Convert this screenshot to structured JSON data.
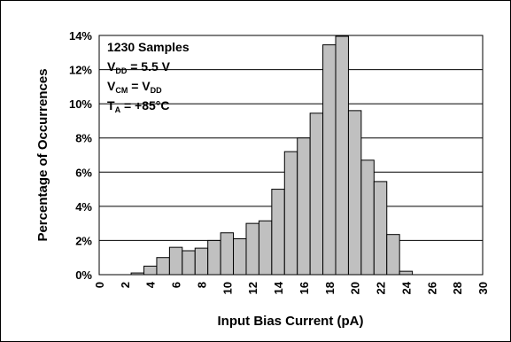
{
  "chart_data": {
    "type": "bar",
    "xlabel": "Input Bias Current (pA)",
    "ylabel": "Percentage of Occurrences",
    "x_tick_labels": [
      "0",
      "2",
      "4",
      "6",
      "8",
      "10",
      "12",
      "14",
      "16",
      "18",
      "20",
      "22",
      "24",
      "26",
      "28",
      "30"
    ],
    "y_tick_labels": [
      "0%",
      "2%",
      "4%",
      "6%",
      "8%",
      "10%",
      "12%",
      "14%"
    ],
    "ylim": [
      0,
      14
    ],
    "xlim": [
      0,
      30
    ],
    "bin_width": 1,
    "grid": "horizontal",
    "legend": "none",
    "bins": [
      {
        "x": 3,
        "value": 0.1
      },
      {
        "x": 4,
        "value": 0.5
      },
      {
        "x": 5,
        "value": 1.0
      },
      {
        "x": 6,
        "value": 1.6
      },
      {
        "x": 7,
        "value": 1.4
      },
      {
        "x": 8,
        "value": 1.55
      },
      {
        "x": 9,
        "value": 2.0
      },
      {
        "x": 10,
        "value": 2.45
      },
      {
        "x": 11,
        "value": 2.1
      },
      {
        "x": 12,
        "value": 3.0
      },
      {
        "x": 13,
        "value": 3.15
      },
      {
        "x": 14,
        "value": 5.0
      },
      {
        "x": 15,
        "value": 7.2
      },
      {
        "x": 16,
        "value": 8.0
      },
      {
        "x": 17,
        "value": 9.45
      },
      {
        "x": 18,
        "value": 13.45
      },
      {
        "x": 19,
        "value": 13.95
      },
      {
        "x": 20,
        "value": 9.6
      },
      {
        "x": 21,
        "value": 6.7
      },
      {
        "x": 22,
        "value": 5.45
      },
      {
        "x": 23,
        "value": 2.35
      },
      {
        "x": 24,
        "value": 0.2
      }
    ],
    "bar_fill": "#c0c0c0",
    "bar_stroke": "#000000",
    "annotation": {
      "samples": "1230 Samples",
      "vdd_main": "V",
      "vdd_sub": "DD",
      "vdd_rest": " = 5.5 V",
      "vcm_main": "V",
      "vcm_sub": "CM",
      "vcm_eq": " = V",
      "vcm_rhs_sub": "DD",
      "ta_main": "T",
      "ta_sub": "A",
      "ta_rest": " = +85°C"
    }
  }
}
